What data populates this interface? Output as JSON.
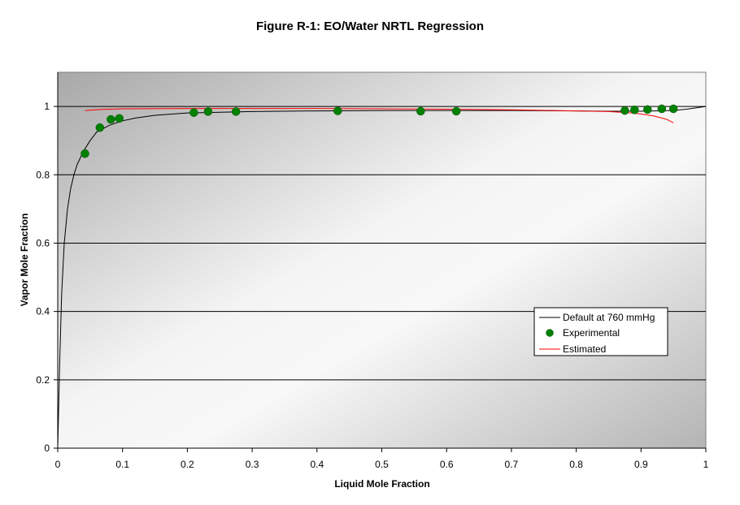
{
  "chart_data": {
    "type": "scatter",
    "title": "Figure R-1:  EO/Water NRTL Regression",
    "xlabel": "Liquid Mole Fraction",
    "ylabel": "Vapor Mole Fraction",
    "xlim": [
      0,
      1
    ],
    "ylim": [
      0,
      1.1
    ],
    "x_ticks": [
      0,
      0.1,
      0.2,
      0.3,
      0.4,
      0.5,
      0.6,
      0.7,
      0.8,
      0.9,
      1
    ],
    "y_ticks": [
      0,
      0.2,
      0.4,
      0.6,
      0.8,
      1
    ],
    "x_tick_labels": [
      "0",
      "0.1",
      "0.2",
      "0.3",
      "0.4",
      "0.5",
      "0.6",
      "0.7",
      "0.8",
      "0.9",
      "1"
    ],
    "y_tick_labels": [
      "0",
      "0.2",
      "0.4",
      "0.6",
      "0.8",
      "1"
    ],
    "grid": "horizontal",
    "legend_position": "right",
    "series": [
      {
        "name": "Default at 760 mmHg",
        "kind": "line",
        "color": "#000000",
        "x": [
          0,
          0.003,
          0.006,
          0.01,
          0.015,
          0.02,
          0.025,
          0.03,
          0.04,
          0.05,
          0.06,
          0.08,
          0.1,
          0.12,
          0.15,
          0.2,
          0.3,
          0.4,
          0.5,
          0.6,
          0.7,
          0.8,
          0.85,
          0.9,
          0.95,
          0.97,
          1.0
        ],
        "y": [
          0,
          0.25,
          0.45,
          0.6,
          0.7,
          0.76,
          0.8,
          0.83,
          0.87,
          0.9,
          0.925,
          0.945,
          0.958,
          0.966,
          0.974,
          0.981,
          0.985,
          0.987,
          0.988,
          0.988,
          0.988,
          0.987,
          0.986,
          0.986,
          0.988,
          0.992,
          1.0
        ]
      },
      {
        "name": "Experimental",
        "kind": "scatter",
        "color": "#008000",
        "x": [
          0.042,
          0.065,
          0.082,
          0.095,
          0.21,
          0.232,
          0.275,
          0.432,
          0.56,
          0.615,
          0.875,
          0.89,
          0.91,
          0.932,
          0.95
        ],
        "y": [
          0.862,
          0.938,
          0.962,
          0.965,
          0.982,
          0.985,
          0.985,
          0.987,
          0.986,
          0.986,
          0.988,
          0.99,
          0.991,
          0.993,
          0.993
        ]
      },
      {
        "name": "Estimated",
        "kind": "line",
        "color": "#ff0000",
        "x": [
          0.042,
          0.065,
          0.1,
          0.2,
          0.3,
          0.4,
          0.5,
          0.6,
          0.7,
          0.8,
          0.85,
          0.88,
          0.9,
          0.92,
          0.94,
          0.95
        ],
        "y": [
          0.988,
          0.991,
          0.993,
          0.994,
          0.994,
          0.994,
          0.993,
          0.992,
          0.99,
          0.987,
          0.985,
          0.982,
          0.978,
          0.972,
          0.962,
          0.952
        ]
      }
    ]
  }
}
